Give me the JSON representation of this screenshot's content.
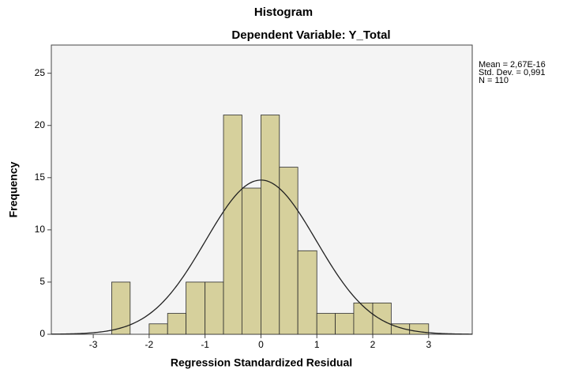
{
  "chart_data": {
    "type": "histogram",
    "title": "Histogram",
    "subtitle": "Dependent Variable: Y_Total",
    "x_label": "Regression Standardized Residual",
    "y_label": "Frequency",
    "bins": [
      -2.67,
      -2.34,
      -2.0,
      -1.67,
      -1.34,
      -1.0,
      -0.67,
      -0.34,
      0.0,
      0.33,
      0.66,
      1.0,
      1.33,
      1.66,
      2.0,
      2.33,
      2.66,
      3.0
    ],
    "counts": [
      5,
      0,
      1,
      2,
      5,
      5,
      21,
      14,
      21,
      16,
      8,
      2,
      2,
      3,
      3,
      1,
      1
    ],
    "color": "#d6d09c",
    "edge_color": "#2b2b2b",
    "xlim": [
      -3.75,
      3.78
    ],
    "xticks": [
      -3,
      -2,
      -1,
      0,
      1,
      2,
      3
    ],
    "ylim": [
      0,
      27.7
    ],
    "yticks": [
      0,
      5,
      10,
      15,
      20,
      25
    ],
    "stats": [
      {
        "value": 2.67e-16,
        "label": "Mean = 2,67E-16"
      },
      {
        "value": 0.991,
        "label": "Std. Dev. = 0,991"
      },
      {
        "value": 110,
        "label": "N = 110"
      }
    ]
  }
}
